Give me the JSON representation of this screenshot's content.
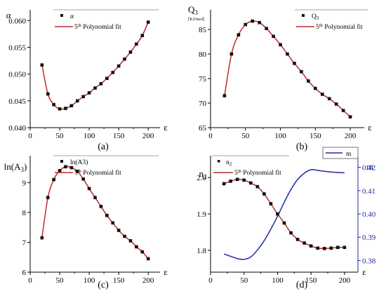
{
  "chart_data": [
    {
      "type": "scatter",
      "panel_label": "(a)",
      "ylabel": "α",
      "xlabel": "ε",
      "xlim": [
        0,
        220
      ],
      "ylim": [
        0.04,
        0.062
      ],
      "xticks": [
        0,
        50,
        100,
        150,
        200
      ],
      "yticks": [
        "0.040",
        "0.045",
        "0.050",
        "0.055",
        "0.060"
      ],
      "ytick_values": [
        0.04,
        0.045,
        0.05,
        0.055,
        0.06
      ],
      "legend": [
        "α",
        "5th Polynomial fit"
      ],
      "series": [
        {
          "name": "α",
          "style": "markers",
          "x": [
            20,
            30,
            40,
            50,
            60,
            70,
            80,
            90,
            100,
            110,
            120,
            130,
            140,
            150,
            160,
            170,
            180,
            190,
            200
          ],
          "y": [
            0.0517,
            0.0463,
            0.0443,
            0.0435,
            0.0436,
            0.0441,
            0.045,
            0.0458,
            0.0465,
            0.0474,
            0.0482,
            0.0492,
            0.0503,
            0.0515,
            0.0528,
            0.0541,
            0.0556,
            0.0572,
            0.0597
          ]
        },
        {
          "name": "5th Polynomial fit",
          "style": "line",
          "x": [
            20,
            30,
            40,
            50,
            60,
            70,
            80,
            90,
            100,
            110,
            120,
            130,
            140,
            150,
            160,
            170,
            180,
            190,
            200
          ],
          "y": [
            0.0517,
            0.0463,
            0.0443,
            0.0435,
            0.0436,
            0.0441,
            0.045,
            0.0458,
            0.0465,
            0.0474,
            0.0482,
            0.0492,
            0.0503,
            0.0515,
            0.0528,
            0.0541,
            0.0556,
            0.0572,
            0.0597
          ]
        }
      ]
    },
    {
      "type": "scatter",
      "panel_label": "(b)",
      "ylabel": "Q3",
      "yunit": "[KJ/mol]",
      "xlabel": "ε",
      "xlim": [
        0,
        220
      ],
      "ylim": [
        65,
        89
      ],
      "xticks": [
        0,
        50,
        100,
        150,
        200
      ],
      "yticks": [
        "65",
        "70",
        "75",
        "80",
        "85"
      ],
      "ytick_values": [
        65,
        70,
        75,
        80,
        85
      ],
      "legend": [
        "Q3",
        "5th Polynomial fit"
      ],
      "series": [
        {
          "name": "Q3",
          "style": "markers",
          "x": [
            20,
            30,
            40,
            50,
            60,
            70,
            80,
            90,
            100,
            110,
            120,
            130,
            140,
            150,
            160,
            170,
            180,
            190,
            200
          ],
          "y": [
            71.5,
            80.0,
            83.9,
            86.0,
            86.7,
            86.4,
            85.2,
            83.6,
            81.9,
            80.0,
            78.1,
            76.4,
            74.5,
            73.0,
            71.8,
            70.9,
            69.8,
            68.5,
            67.2
          ]
        },
        {
          "name": "5th Polynomial fit",
          "style": "line",
          "x": [
            20,
            30,
            40,
            50,
            60,
            70,
            80,
            90,
            100,
            110,
            120,
            130,
            140,
            150,
            160,
            170,
            180,
            190,
            200
          ],
          "y": [
            71.5,
            80.0,
            83.9,
            86.0,
            86.7,
            86.4,
            85.2,
            83.6,
            81.9,
            80.0,
            78.1,
            76.4,
            74.5,
            73.0,
            71.8,
            70.9,
            69.8,
            68.5,
            67.2
          ]
        }
      ]
    },
    {
      "type": "scatter",
      "panel_label": "(c)",
      "ylabel": "ln(A3)",
      "xlabel": "ε",
      "xlim": [
        0,
        220
      ],
      "ylim": [
        6,
        9.9
      ],
      "xticks": [
        0,
        50,
        100,
        150,
        200
      ],
      "yticks": [
        "6",
        "7",
        "8",
        "9"
      ],
      "ytick_values": [
        6,
        7,
        8,
        9
      ],
      "legend": [
        "ln(A3)",
        "5th Polynomial fit"
      ],
      "series": [
        {
          "name": "ln(A3)",
          "style": "markers",
          "x": [
            20,
            30,
            40,
            50,
            60,
            70,
            80,
            90,
            100,
            110,
            120,
            130,
            140,
            150,
            160,
            170,
            180,
            190,
            200
          ],
          "y": [
            7.15,
            8.5,
            9.1,
            9.4,
            9.53,
            9.5,
            9.38,
            9.12,
            8.8,
            8.5,
            8.2,
            7.9,
            7.65,
            7.4,
            7.2,
            7.05,
            6.85,
            6.68,
            6.45
          ]
        },
        {
          "name": "5th Polynomial fit",
          "style": "line",
          "x": [
            20,
            30,
            40,
            50,
            60,
            70,
            80,
            90,
            100,
            110,
            120,
            130,
            140,
            150,
            160,
            170,
            180,
            190,
            200
          ],
          "y": [
            7.15,
            8.5,
            9.1,
            9.4,
            9.53,
            9.5,
            9.38,
            9.12,
            8.8,
            8.5,
            8.2,
            7.9,
            7.65,
            7.4,
            7.2,
            7.05,
            6.85,
            6.68,
            6.45
          ]
        }
      ]
    },
    {
      "type": "line",
      "panel_label": "(d)",
      "ylabel": "n2",
      "ylabel_right": "m",
      "xlabel": "ε",
      "xlim": [
        0,
        220
      ],
      "ylim": [
        1.74,
        2.06
      ],
      "ylim_right": [
        0.375,
        0.425
      ],
      "xticks": [
        0,
        50,
        100,
        150,
        200
      ],
      "yticks": [
        "1.8",
        "1.9",
        "2.0"
      ],
      "ytick_values": [
        1.8,
        1.9,
        2.0
      ],
      "yticks_right": [
        "0.38",
        "0.39",
        "0.40",
        "0.41",
        "0.42"
      ],
      "ytick_values_right": [
        0.38,
        0.39,
        0.4,
        0.41,
        0.42
      ],
      "legend": [
        "n2",
        "5th Polynomial fit",
        "m"
      ],
      "series": [
        {
          "name": "n2",
          "style": "markers",
          "axis": "left",
          "x": [
            20,
            30,
            40,
            50,
            60,
            70,
            80,
            90,
            100,
            110,
            120,
            130,
            140,
            150,
            160,
            170,
            180,
            190,
            200
          ],
          "y": [
            1.983,
            1.99,
            1.995,
            1.993,
            1.985,
            1.975,
            1.955,
            1.928,
            1.9,
            1.875,
            1.848,
            1.83,
            1.82,
            1.812,
            1.806,
            1.805,
            1.806,
            1.808,
            1.808
          ]
        },
        {
          "name": "5th Polynomial fit",
          "style": "line",
          "axis": "left",
          "x": [
            20,
            30,
            40,
            50,
            60,
            70,
            80,
            90,
            100,
            110,
            120,
            130,
            140,
            150,
            160,
            170,
            180,
            190,
            200
          ],
          "y": [
            1.983,
            1.99,
            1.995,
            1.993,
            1.985,
            1.975,
            1.955,
            1.928,
            1.9,
            1.875,
            1.848,
            1.83,
            1.82,
            1.812,
            1.806,
            1.805,
            1.806,
            1.808,
            1.808
          ]
        },
        {
          "name": "m",
          "style": "line",
          "axis": "right",
          "x": [
            20,
            30,
            40,
            50,
            60,
            70,
            80,
            90,
            100,
            110,
            120,
            130,
            140,
            150,
            160,
            170,
            180,
            190,
            200
          ],
          "y": [
            0.3828,
            0.3818,
            0.3808,
            0.3805,
            0.3815,
            0.3845,
            0.3885,
            0.3935,
            0.399,
            0.405,
            0.4105,
            0.4148,
            0.4175,
            0.419,
            0.4187,
            0.4183,
            0.418,
            0.4178,
            0.4177
          ]
        }
      ]
    }
  ],
  "colors": {
    "fit": "#c0282d",
    "marker": "#111111",
    "m_series": "#1f2aa8",
    "axis": "#000000"
  }
}
